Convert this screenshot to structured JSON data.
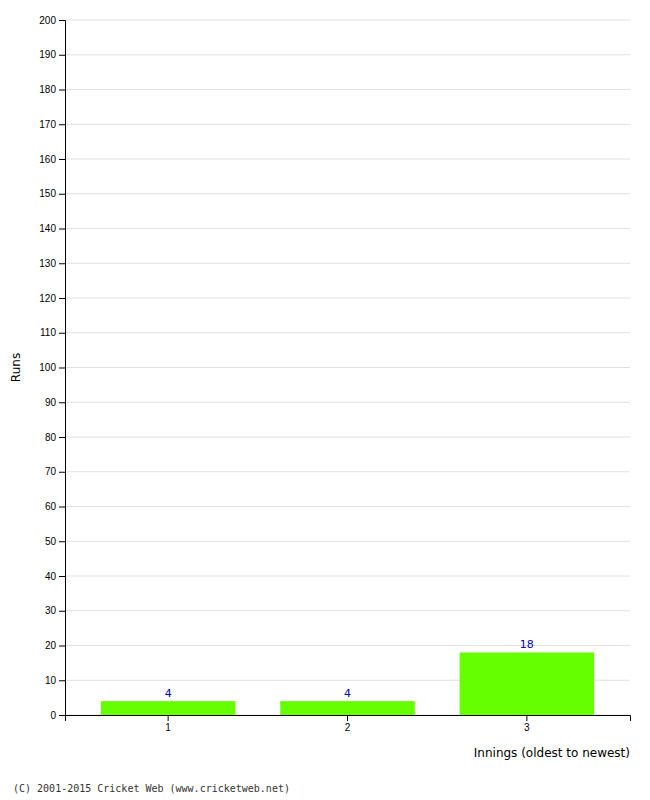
{
  "chart_data": {
    "type": "bar",
    "categories": [
      "1",
      "2",
      "3"
    ],
    "values": [
      4,
      4,
      18
    ],
    "color": "#66ff00",
    "xlabel": "Innings (oldest to newest)",
    "ylabel": "Runs",
    "ylim": [
      0,
      200
    ],
    "yticks": [
      0,
      10,
      20,
      30,
      40,
      50,
      60,
      70,
      80,
      90,
      100,
      110,
      120,
      130,
      140,
      150,
      160,
      170,
      180,
      190,
      200
    ],
    "grid": true,
    "data_labels": true,
    "annotations": [
      "(C) 2001-2015 Cricket Web (www.cricketweb.net)"
    ]
  }
}
